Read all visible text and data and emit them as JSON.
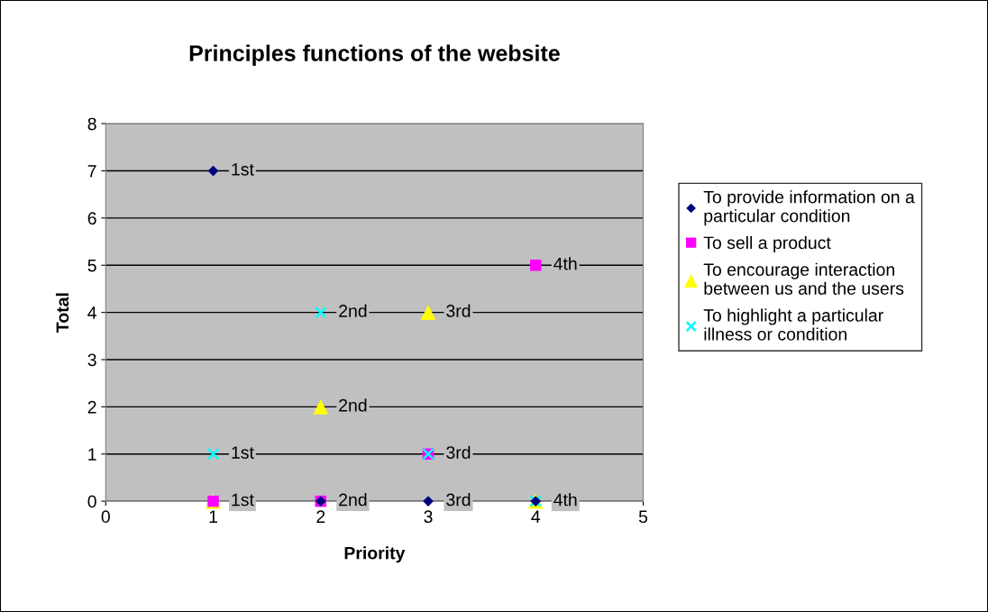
{
  "chart_data": {
    "type": "scatter",
    "title": "Principles functions of the website",
    "xlabel": "Priority",
    "ylabel": "Total",
    "x": [
      1,
      2,
      3,
      4
    ],
    "series": [
      {
        "name": "To provide information on a particular condition",
        "color": "#000080",
        "marker": "diamond",
        "values": [
          7,
          0,
          0,
          0
        ]
      },
      {
        "name": "To sell a product",
        "color": "#ff00ff",
        "marker": "square",
        "values": [
          0,
          0,
          1,
          5
        ]
      },
      {
        "name": "To encourage interaction between us and the users",
        "color": "#ffff00",
        "marker": "triangle",
        "values": [
          0,
          2,
          4,
          0
        ]
      },
      {
        "name": "To highlight a particular illness or condition",
        "color": "#00ffff",
        "marker": "cross",
        "values": [
          1,
          4,
          1,
          0
        ]
      }
    ],
    "annotations": [
      {
        "text": "1st",
        "x": 1,
        "y": 7
      },
      {
        "text": "4th",
        "x": 4,
        "y": 5
      },
      {
        "text": "2nd",
        "x": 2,
        "y": 4
      },
      {
        "text": "3rd",
        "x": 3,
        "y": 4
      },
      {
        "text": "2nd",
        "x": 2,
        "y": 2
      },
      {
        "text": "1st",
        "x": 1,
        "y": 1
      },
      {
        "text": "3rd",
        "x": 3,
        "y": 1
      },
      {
        "text": "1st",
        "x": 1,
        "y": 0
      },
      {
        "text": "2nd",
        "x": 2,
        "y": 0
      },
      {
        "text": "3rd",
        "x": 3,
        "y": 0
      },
      {
        "text": "4th",
        "x": 4,
        "y": 0
      }
    ],
    "xlim": [
      0,
      5
    ],
    "xticks": [
      0,
      1,
      2,
      3,
      4,
      5
    ],
    "ylim": [
      0,
      8
    ],
    "yticks": [
      0,
      1,
      2,
      3,
      4,
      5,
      6,
      7,
      8
    ],
    "grid": "y",
    "legend": "right"
  }
}
